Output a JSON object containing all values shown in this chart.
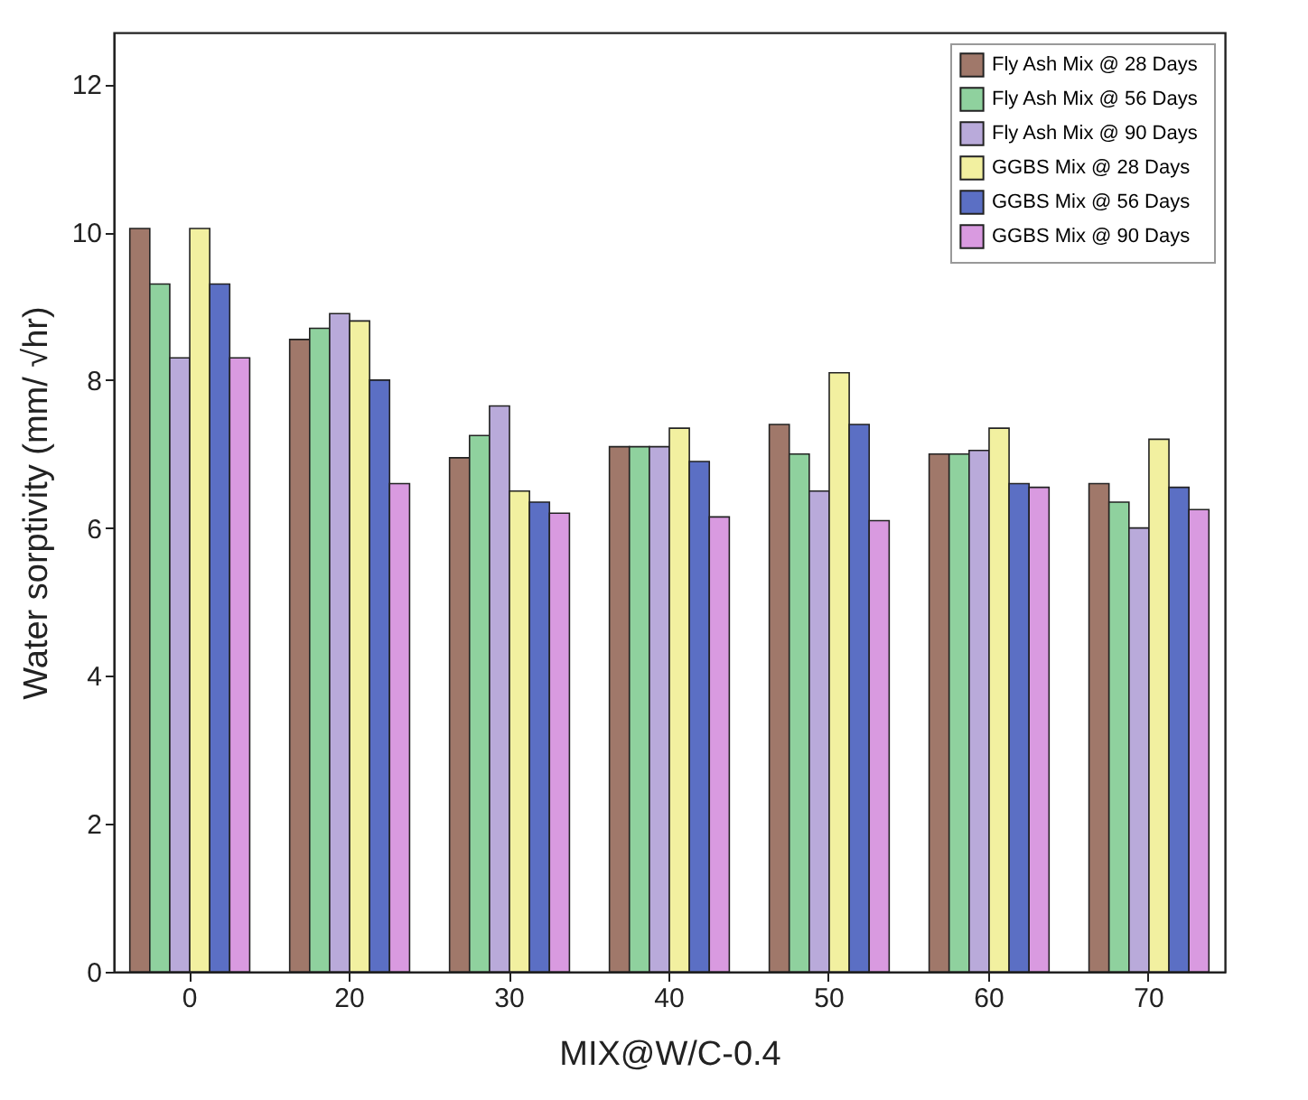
{
  "chart_data": {
    "type": "bar",
    "xlabel": "MIX@W/C-0.4",
    "ylabel": "Water sorptivity (mm/ √hr)",
    "categories": [
      "0",
      "20",
      "30",
      "40",
      "50",
      "60",
      "70"
    ],
    "series": [
      {
        "name": "Fly Ash Mix @ 28  Days",
        "color": "#a0786a",
        "values": [
          10.05,
          8.55,
          6.95,
          7.1,
          7.4,
          7.0,
          6.6
        ]
      },
      {
        "name": "Fly Ash Mix @ 56  Days",
        "color": "#8fd19e",
        "values": [
          9.3,
          8.7,
          7.25,
          7.1,
          7.0,
          7.0,
          6.35
        ]
      },
      {
        "name": "Fly Ash Mix @ 90 Days",
        "color": "#b9aada",
        "values": [
          8.3,
          8.9,
          7.65,
          7.1,
          6.5,
          7.05,
          6.0
        ]
      },
      {
        "name": "GGBS Mix @ 28  Days",
        "color": "#f2f0a0",
        "values": [
          10.05,
          8.8,
          6.5,
          7.35,
          8.1,
          7.35,
          7.2
        ]
      },
      {
        "name": "GGBS Mix @ 56  Days",
        "color": "#5b6fc4",
        "values": [
          9.3,
          8.0,
          6.35,
          6.9,
          7.4,
          6.6,
          6.55
        ]
      },
      {
        "name": "GGBS Mix @ 90 Days",
        "color": "#d99ae0",
        "values": [
          8.3,
          6.6,
          6.2,
          6.15,
          6.1,
          6.55,
          6.25
        ]
      }
    ],
    "ylim": [
      0,
      12.7
    ],
    "yticks": [
      0,
      2,
      4,
      6,
      8,
      10,
      12
    ],
    "grid": false,
    "legend": "top right"
  }
}
